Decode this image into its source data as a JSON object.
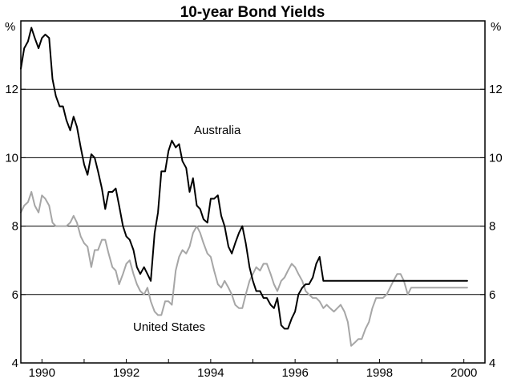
{
  "chart_data": {
    "type": "line",
    "title": "10-year Bond Yields",
    "unit_left": "%",
    "unit_right": "%",
    "ylim": [
      4,
      14
    ],
    "y_ticks": [
      4,
      6,
      8,
      10,
      12
    ],
    "y_tick_labels": [
      "4",
      "6",
      "8",
      "10",
      "12"
    ],
    "gridlines": [
      6,
      8,
      10,
      12
    ],
    "xlim": [
      1989.5,
      2000.5
    ],
    "x_ticks": [
      1990,
      1992,
      1994,
      1996,
      1998,
      2000
    ],
    "x_tick_labels": [
      "1990",
      "1992",
      "1994",
      "1996",
      "1998",
      "2000"
    ],
    "grid": true,
    "legend": "none",
    "series": [
      {
        "name": "Australia",
        "color": "#000000",
        "x": [
          1989.5,
          1989.58,
          1989.67,
          1989.75,
          1989.83,
          1989.92,
          1990.0,
          1990.08,
          1990.17,
          1990.25,
          1990.33,
          1990.42,
          1990.5,
          1990.58,
          1990.67,
          1990.75,
          1990.83,
          1990.92,
          1991.0,
          1991.08,
          1991.17,
          1991.25,
          1991.33,
          1991.42,
          1991.5,
          1991.58,
          1991.67,
          1991.75,
          1991.83,
          1991.92,
          1992.0,
          1992.08,
          1992.17,
          1992.25,
          1992.33,
          1992.42,
          1992.5,
          1992.58,
          1992.67,
          1992.75,
          1992.83,
          1992.92,
          1993.0,
          1993.08,
          1993.17,
          1993.25,
          1993.33,
          1993.42,
          1993.5,
          1993.58,
          1993.67,
          1993.75,
          1993.83,
          1993.92,
          1994.0,
          1994.08,
          1994.17,
          1994.25,
          1994.33,
          1994.42,
          1994.5,
          1994.58,
          1994.67,
          1994.75,
          1994.83,
          1994.92,
          1995.0,
          1995.08,
          1995.17,
          1995.25,
          1995.33,
          1995.42,
          1995.5,
          1995.58,
          1995.67,
          1995.75,
          1995.83,
          1995.92,
          1996.0,
          1996.08,
          1996.17,
          1996.25,
          1996.33,
          1996.42,
          1996.5,
          1996.58,
          1996.67,
          1996.75,
          1996.83,
          1996.92,
          1997.0,
          1997.08,
          1997.17,
          1997.25,
          1997.33,
          1997.42,
          1997.5,
          1997.58,
          1997.67,
          1997.75,
          1997.83,
          1997.92,
          1998.0,
          1998.08,
          1998.17,
          1998.25,
          1998.33,
          1998.42,
          1998.5,
          1998.58,
          1998.67,
          1998.75,
          1998.83,
          1998.92,
          1999.0,
          1999.08,
          1999.17,
          1999.25,
          1999.33,
          1999.42,
          1999.5,
          1999.58,
          1999.67,
          1999.75,
          1999.83,
          1999.92,
          2000.0,
          2000.08
        ],
        "values": [
          12.6,
          13.2,
          13.4,
          13.8,
          13.5,
          13.2,
          13.5,
          13.6,
          13.5,
          12.3,
          11.8,
          11.5,
          11.5,
          11.1,
          10.8,
          11.2,
          10.9,
          10.3,
          9.8,
          9.5,
          10.1,
          10.0,
          9.6,
          9.1,
          8.5,
          9.0,
          9.0,
          9.1,
          8.6,
          8.0,
          7.7,
          7.6,
          7.3,
          6.8,
          6.6,
          6.8,
          6.6,
          6.4,
          7.8,
          8.4,
          9.6,
          9.6,
          10.2,
          10.5,
          10.3,
          10.4,
          9.9,
          9.7,
          9.0,
          9.4,
          8.6,
          8.5,
          8.2,
          8.1,
          8.8,
          8.8,
          8.9,
          8.3,
          8.0,
          7.4,
          7.2,
          7.5,
          7.8,
          8.0,
          7.5,
          6.8,
          6.4,
          6.1,
          6.1,
          5.9,
          5.9,
          5.7,
          5.6,
          5.9,
          5.1,
          5.0,
          5.0,
          5.3,
          5.5,
          6.0,
          6.2,
          6.3,
          6.3,
          6.5,
          6.9,
          7.1,
          6.4,
          6.4,
          6.4,
          6.4,
          6.4,
          6.4,
          6.4,
          6.4,
          6.4,
          6.4,
          6.4,
          6.4,
          6.4,
          6.4,
          6.4,
          6.4,
          6.4,
          6.4,
          6.4,
          6.4,
          6.4,
          6.4,
          6.4,
          6.4,
          6.4,
          6.4,
          6.4,
          6.4,
          6.4,
          6.4,
          6.4,
          6.4,
          6.4,
          6.4,
          6.4,
          6.4,
          6.4,
          6.4,
          6.4,
          6.4,
          6.4,
          6.4
        ],
        "label": "Australia"
      },
      {
        "name": "United States",
        "color": "#a6a6a6",
        "x": [
          1989.5,
          1989.58,
          1989.67,
          1989.75,
          1989.83,
          1989.92,
          1990.0,
          1990.08,
          1990.17,
          1990.25,
          1990.33,
          1990.42,
          1990.5,
          1990.58,
          1990.67,
          1990.75,
          1990.83,
          1990.92,
          1991.0,
          1991.08,
          1991.17,
          1991.25,
          1991.33,
          1991.42,
          1991.5,
          1991.58,
          1991.67,
          1991.75,
          1991.83,
          1991.92,
          1992.0,
          1992.08,
          1992.17,
          1992.25,
          1992.33,
          1992.42,
          1992.5,
          1992.58,
          1992.67,
          1992.75,
          1992.83,
          1992.92,
          1993.0,
          1993.08,
          1993.17,
          1993.25,
          1993.33,
          1993.42,
          1993.5,
          1993.58,
          1993.67,
          1993.75,
          1993.83,
          1993.92,
          1994.0,
          1994.08,
          1994.17,
          1994.25,
          1994.33,
          1994.42,
          1994.5,
          1994.58,
          1994.67,
          1994.75,
          1994.83,
          1994.92,
          1995.0,
          1995.08,
          1995.17,
          1995.25,
          1995.33,
          1995.42,
          1995.5,
          1995.58,
          1995.67,
          1995.75,
          1995.83,
          1995.92,
          1996.0,
          1996.08,
          1996.17,
          1996.25,
          1996.33,
          1996.42,
          1996.5,
          1996.58,
          1996.67,
          1996.75,
          1996.83,
          1996.92,
          1997.0,
          1997.08,
          1997.17,
          1997.25,
          1997.33,
          1997.42,
          1997.5,
          1997.58,
          1997.67,
          1997.75,
          1997.83,
          1997.92,
          1998.0,
          1998.08,
          1998.17,
          1998.25,
          1998.33,
          1998.42,
          1998.5,
          1998.58,
          1998.67,
          1998.75,
          1998.83,
          1998.92,
          1999.0,
          1999.08,
          1999.17,
          1999.25,
          1999.33,
          1999.42,
          1999.5,
          1999.58,
          1999.67,
          1999.75,
          1999.83,
          1999.92,
          2000.0,
          2000.08
        ],
        "values": [
          8.4,
          8.6,
          8.7,
          9.0,
          8.6,
          8.4,
          8.9,
          8.8,
          8.6,
          8.1,
          8.0,
          8.0,
          8.0,
          8.0,
          8.1,
          8.3,
          8.1,
          7.7,
          7.5,
          7.4,
          6.8,
          7.3,
          7.3,
          7.6,
          7.6,
          7.2,
          6.8,
          6.7,
          6.3,
          6.6,
          6.9,
          7.0,
          6.6,
          6.3,
          6.1,
          6.0,
          6.2,
          5.8,
          5.5,
          5.4,
          5.4,
          5.8,
          5.8,
          5.7,
          6.7,
          7.1,
          7.3,
          7.2,
          7.4,
          7.8,
          8.0,
          7.8,
          7.5,
          7.2,
          7.1,
          6.7,
          6.3,
          6.2,
          6.4,
          6.2,
          6.0,
          5.7,
          5.6,
          5.6,
          6.0,
          6.4,
          6.6,
          6.8,
          6.7,
          6.9,
          6.9,
          6.6,
          6.3,
          6.1,
          6.4,
          6.5,
          6.7,
          6.9,
          6.8,
          6.6,
          6.4,
          6.1,
          6.0,
          5.9,
          5.9,
          5.8,
          5.6,
          5.7,
          5.6,
          5.5,
          5.6,
          5.7,
          5.5,
          5.2,
          4.5,
          4.6,
          4.7,
          4.7,
          5.0,
          5.2,
          5.6,
          5.9,
          5.9,
          5.9,
          6.0,
          6.2,
          6.4,
          6.6,
          6.6,
          6.4,
          6.0,
          6.2,
          6.2,
          6.2,
          6.2,
          6.2,
          6.2,
          6.2,
          6.2,
          6.2,
          6.2,
          6.2,
          6.2,
          6.2,
          6.2,
          6.2,
          6.2,
          6.2
        ],
        "label": "United States"
      }
    ]
  }
}
